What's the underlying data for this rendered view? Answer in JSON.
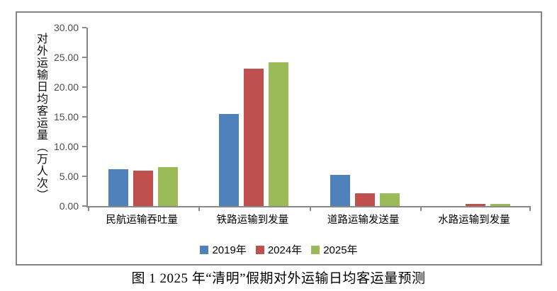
{
  "chart_data": {
    "type": "bar",
    "caption": "图 1  2025 年“清明”假期对外运输日均客运量预测",
    "ylabel": "对外运输日均客运量（万人次）",
    "xlabel": "",
    "categories": [
      "民航运输吞吐量",
      "铁路运输到发量",
      "道路运输发送量",
      "水路运输到发量"
    ],
    "series": [
      {
        "name": "2019年",
        "color": "#4F81BD",
        "values": [
          6.2,
          15.5,
          5.2,
          0.0
        ]
      },
      {
        "name": "2024年",
        "color": "#C0504D",
        "values": [
          6.0,
          23.1,
          2.2,
          0.35
        ]
      },
      {
        "name": "2025年",
        "color": "#9BBB59",
        "values": [
          6.5,
          24.2,
          2.2,
          0.3
        ]
      }
    ],
    "ylim": [
      0,
      30
    ],
    "ytick_step": 5,
    "ytick_labels": [
      "30.00",
      "25.00",
      "20.00",
      "15.00",
      "10.00",
      "5.00",
      "0.00"
    ],
    "grid": false,
    "legend_position": "bottom-center",
    "axis_color": "#898989"
  }
}
